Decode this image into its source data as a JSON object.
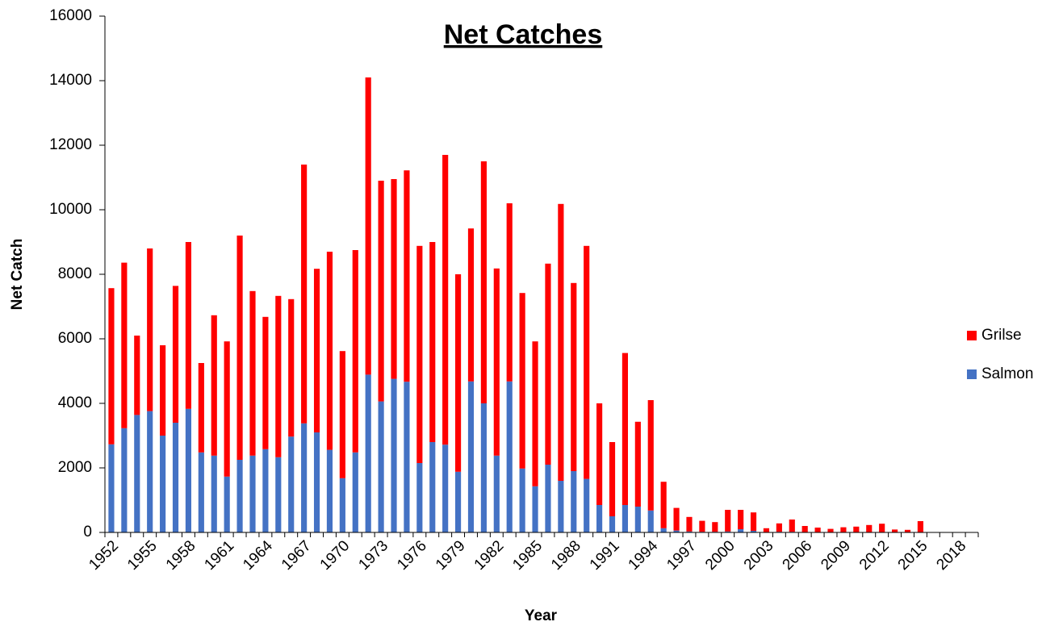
{
  "chart_data": {
    "type": "bar",
    "stacked": true,
    "title": "Net Catches",
    "x_label": "Year",
    "y_label": "Net Catch",
    "categories": [
      "1952",
      null,
      null,
      "1955",
      null,
      null,
      "1958",
      null,
      null,
      "1961",
      null,
      null,
      "1964",
      null,
      null,
      "1967",
      null,
      null,
      "1970",
      null,
      null,
      "1973",
      null,
      null,
      "1976",
      null,
      null,
      "1979",
      null,
      null,
      "1982",
      null,
      null,
      "1985",
      null,
      null,
      "1988",
      null,
      null,
      "1991",
      null,
      null,
      "1994",
      null,
      null,
      "1997",
      null,
      null,
      "2000",
      null,
      null,
      "2003",
      null,
      null,
      "2006",
      null,
      null,
      "2009",
      null,
      null,
      "2012",
      null,
      null,
      "2015",
      null,
      null,
      "2018",
      null
    ],
    "series": [
      {
        "name": "Salmon",
        "color": "#4472c4",
        "values": [
          2730,
          3230,
          3640,
          3760,
          3000,
          3400,
          3830,
          2480,
          2380,
          1730,
          2250,
          2380,
          2580,
          2330,
          2970,
          3380,
          3100,
          2560,
          1680,
          2480,
          4890,
          4060,
          4760,
          4670,
          2150,
          2800,
          2720,
          1880,
          4680,
          4000,
          2380,
          4680,
          1980,
          1430,
          2100,
          1600,
          1900,
          1660,
          850,
          500,
          850,
          800,
          680,
          130,
          60,
          30,
          20,
          20,
          30,
          100,
          50,
          10,
          20,
          20,
          10,
          10,
          10,
          10,
          10,
          10,
          10,
          5,
          5,
          10,
          0,
          0,
          0,
          0
        ]
      },
      {
        "name": "Grilse",
        "color": "#ff0000",
        "values": [
          4840,
          5130,
          2460,
          5040,
          2800,
          4240,
          5170,
          2770,
          4350,
          4190,
          6950,
          5100,
          4100,
          5000,
          4260,
          8020,
          5070,
          6140,
          3940,
          6270,
          9210,
          6840,
          6190,
          6550,
          6730,
          6200,
          8980,
          6120,
          4740,
          7500,
          5800,
          5520,
          5440,
          4490,
          6230,
          8580,
          5830,
          7220,
          3150,
          2300,
          4710,
          2630,
          3420,
          1440,
          700,
          450,
          340,
          300,
          670,
          600,
          570,
          120,
          260,
          380,
          190,
          140,
          100,
          150,
          170,
          220,
          260,
          85,
          75,
          340,
          0,
          0,
          0,
          0
        ]
      }
    ],
    "ylim": [
      0,
      16000
    ],
    "yticks": [
      0,
      2000,
      4000,
      6000,
      8000,
      10000,
      12000,
      14000,
      16000
    ],
    "legend": "right"
  }
}
